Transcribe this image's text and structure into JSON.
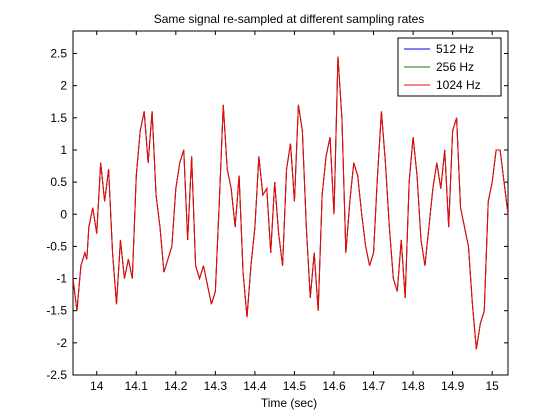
{
  "chart_data": {
    "type": "line",
    "title": "Same signal re-sampled at different sampling rates",
    "xlabel": "Time (sec)",
    "ylabel": "",
    "xlim": [
      13.94,
      15.04
    ],
    "ylim": [
      -2.5,
      2.85
    ],
    "x_ticks": [
      14,
      14.1,
      14.2,
      14.3,
      14.4,
      14.5,
      14.6,
      14.7,
      14.8,
      14.9,
      15
    ],
    "x_tick_labels": [
      "14",
      "14.1",
      "14.2",
      "14.3",
      "14.4",
      "14.5",
      "14.6",
      "14.7",
      "14.8",
      "14.9",
      "15"
    ],
    "y_ticks": [
      -2.5,
      -2,
      -1.5,
      -1,
      -0.5,
      0,
      0.5,
      1,
      1.5,
      2,
      2.5
    ],
    "y_tick_labels": [
      "-2.5",
      "-2",
      "-1.5",
      "-1",
      "-0.5",
      "0",
      "0.5",
      "1",
      "1.5",
      "2",
      "2.5"
    ],
    "grid": false,
    "legend_position": "top-right",
    "series": [
      {
        "name": "512 Hz",
        "color": "#0000ff"
      },
      {
        "name": "256 Hz",
        "color": "#008000"
      },
      {
        "name": "1024 Hz",
        "color": "#ff0000"
      }
    ],
    "x": [
      13.94,
      13.95,
      13.96,
      13.97,
      13.975,
      13.98,
      13.99,
      14.0,
      14.01,
      14.015,
      14.02,
      14.03,
      14.04,
      14.05,
      14.06,
      14.07,
      14.08,
      14.09,
      14.1,
      14.11,
      14.12,
      14.13,
      14.14,
      14.15,
      14.16,
      14.17,
      14.18,
      14.19,
      14.2,
      14.21,
      14.22,
      14.23,
      14.24,
      14.25,
      14.26,
      14.27,
      14.28,
      14.29,
      14.3,
      14.31,
      14.32,
      14.33,
      14.34,
      14.35,
      14.36,
      14.37,
      14.38,
      14.39,
      14.4,
      14.41,
      14.42,
      14.43,
      14.44,
      14.45,
      14.46,
      14.47,
      14.48,
      14.49,
      14.5,
      14.51,
      14.52,
      14.53,
      14.54,
      14.55,
      14.56,
      14.57,
      14.58,
      14.59,
      14.6,
      14.61,
      14.62,
      14.63,
      14.64,
      14.65,
      14.66,
      14.67,
      14.68,
      14.69,
      14.7,
      14.71,
      14.72,
      14.73,
      14.74,
      14.75,
      14.76,
      14.77,
      14.78,
      14.79,
      14.8,
      14.81,
      14.82,
      14.83,
      14.84,
      14.85,
      14.86,
      14.87,
      14.88,
      14.89,
      14.9,
      14.91,
      14.92,
      14.93,
      14.94,
      14.95,
      14.96,
      14.97,
      14.98,
      14.99,
      15.0,
      15.01,
      15.02,
      15.03,
      15.04
    ],
    "y": [
      -1.0,
      -1.5,
      -0.8,
      -0.6,
      -0.7,
      -0.2,
      0.1,
      -0.3,
      0.8,
      0.5,
      0.2,
      0.7,
      -0.6,
      -1.4,
      -0.4,
      -1.0,
      -0.7,
      -1.0,
      0.6,
      1.3,
      1.6,
      0.8,
      1.6,
      0.3,
      -0.2,
      -0.9,
      -0.7,
      -0.5,
      0.4,
      0.8,
      1.0,
      -0.4,
      0.9,
      -0.8,
      -1.0,
      -0.8,
      -1.1,
      -1.4,
      -1.2,
      0.2,
      1.7,
      0.7,
      0.4,
      -0.2,
      0.6,
      -0.9,
      -1.6,
      -0.8,
      -0.2,
      0.9,
      0.3,
      0.4,
      -0.6,
      0.5,
      -0.3,
      -0.8,
      0.7,
      1.1,
      0.2,
      1.7,
      1.3,
      -0.2,
      -1.3,
      -0.6,
      -1.5,
      0.3,
      0.9,
      1.2,
      0.0,
      2.45,
      1.5,
      -0.6,
      0.2,
      0.8,
      0.6,
      0.0,
      -0.5,
      -0.8,
      -0.6,
      0.6,
      1.6,
      0.8,
      -0.2,
      -1.0,
      -1.2,
      -0.4,
      -1.3,
      0.5,
      1.2,
      0.6,
      -0.4,
      -0.8,
      -0.2,
      0.4,
      0.8,
      0.4,
      1.0,
      -0.2,
      1.3,
      1.5,
      0.1,
      -0.2,
      -0.5,
      -1.4,
      -2.1,
      -1.7,
      -1.5,
      0.2,
      0.5,
      1.0,
      1.0,
      0.5,
      0.0
    ]
  }
}
